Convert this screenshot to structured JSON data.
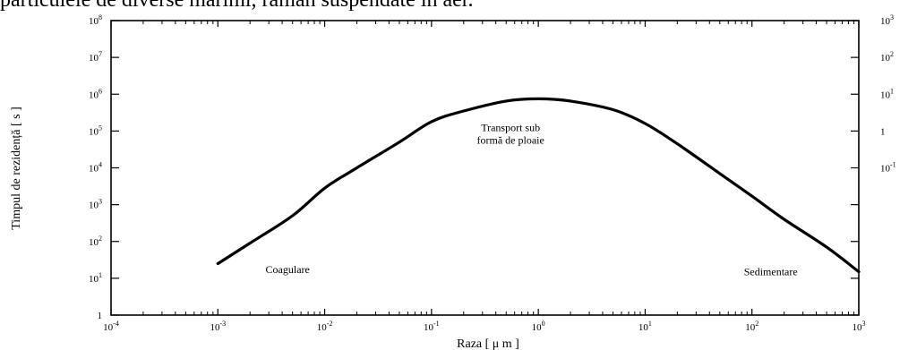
{
  "header_text": "particulele de diverse mărimi, rămân suspendate în aer.",
  "chart_data": {
    "type": "line",
    "title": "",
    "xlabel": "Raza   [ μ m ]",
    "ylabel": "Timpul de rezidență  [ s ]",
    "x_scale": "log",
    "y_scale": "log",
    "xlim": [
      0.0001,
      1000
    ],
    "ylim": [
      1,
      100000000
    ],
    "x_ticks": [
      {
        "value": 0.0001,
        "base": "10",
        "exp": "-4"
      },
      {
        "value": 0.001,
        "base": "10",
        "exp": "-3"
      },
      {
        "value": 0.01,
        "base": "10",
        "exp": "-2"
      },
      {
        "value": 0.1,
        "base": "10",
        "exp": "-1"
      },
      {
        "value": 1,
        "base": "10",
        "exp": "0"
      },
      {
        "value": 10,
        "base": "10",
        "exp": "1"
      },
      {
        "value": 100,
        "base": "10",
        "exp": "2"
      },
      {
        "value": 1000,
        "base": "10",
        "exp": "3"
      }
    ],
    "y_ticks": [
      {
        "value": 1,
        "base": "1",
        "exp": ""
      },
      {
        "value": 10,
        "base": "10",
        "exp": "1"
      },
      {
        "value": 100,
        "base": "10",
        "exp": "2"
      },
      {
        "value": 1000,
        "base": "10",
        "exp": "3"
      },
      {
        "value": 10000,
        "base": "10",
        "exp": "4"
      },
      {
        "value": 100000,
        "base": "10",
        "exp": "5"
      },
      {
        "value": 1000000,
        "base": "10",
        "exp": "6"
      },
      {
        "value": 10000000,
        "base": "10",
        "exp": "7"
      },
      {
        "value": 100000000,
        "base": "10",
        "exp": "8"
      }
    ],
    "right_ticks": [
      {
        "value": 100000000,
        "base": "10",
        "exp": "3"
      },
      {
        "value": 10000000,
        "base": "10",
        "exp": "2"
      },
      {
        "value": 1000000,
        "base": "10",
        "exp": "1"
      },
      {
        "value": 100000,
        "base": "1",
        "exp": ""
      },
      {
        "value": 10000,
        "base": "10",
        "exp": "-1"
      }
    ],
    "series": [
      {
        "x": [
          0.001,
          0.002,
          0.005,
          0.01,
          0.02,
          0.05,
          0.1,
          0.2,
          0.5,
          1,
          2,
          5,
          10,
          20,
          50,
          100,
          200,
          500,
          1000
        ],
        "y": [
          25,
          90,
          500,
          2800,
          10000,
          50000,
          180000,
          350000,
          650000,
          750000,
          650000,
          380000,
          160000,
          45000,
          7000,
          1700,
          400,
          70,
          15
        ]
      }
    ],
    "annotations": [
      {
        "text": "Coagulare",
        "x": 0.0045,
        "y": 14
      },
      {
        "text": "Transport sub",
        "x": 0.55,
        "y": 100000
      },
      {
        "text": "formă de ploaie",
        "x": 0.55,
        "y": 45000
      },
      {
        "text": "Sedimentare",
        "x": 150,
        "y": 12
      }
    ]
  }
}
